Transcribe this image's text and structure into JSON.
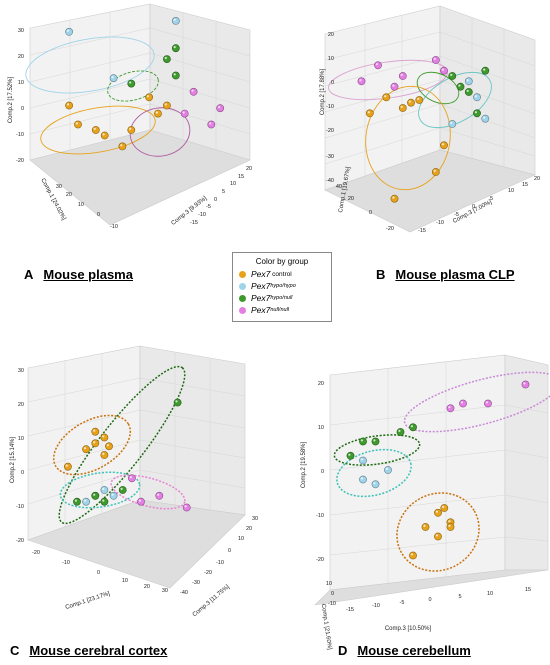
{
  "legend": {
    "title": "Color by group",
    "items": [
      {
        "gene": "Pex7",
        "suffix": " control",
        "sup": "",
        "color": "#e7a21a"
      },
      {
        "gene": "Pex7",
        "suffix": "",
        "sup": "hypo/hypo",
        "color": "#9ed3ea"
      },
      {
        "gene": "Pex7",
        "suffix": "",
        "sup": "hypo/null",
        "color": "#3e9a2c"
      },
      {
        "gene": "Pex7",
        "suffix": "",
        "sup": "null/null",
        "color": "#e37ee3"
      }
    ]
  },
  "chart_data": [
    {
      "type": "scatter",
      "letter": "A",
      "title": "Mouse plasma",
      "axes": {
        "z": {
          "label": "Comp.2 [17.52%]",
          "ticks": [
            "30",
            "20",
            "10",
            "0",
            "-10",
            "-20"
          ]
        },
        "x": {
          "label": "Comp.1 [24.02%]",
          "ticks": [
            "-10",
            "0",
            "10",
            "20",
            "30"
          ]
        },
        "y": {
          "label": "Comp.3 [9.93%]",
          "ticks": [
            "-15",
            "-10",
            "-5",
            "0",
            "5",
            "10",
            "15",
            "20"
          ]
        }
      },
      "groups": [
        {
          "group": "control",
          "points": [
            [
              -18,
              -5
            ],
            [
              -16,
              -12
            ],
            [
              -12,
              -14
            ],
            [
              -10,
              -16
            ],
            [
              -6,
              -20
            ],
            [
              -4,
              -14
            ],
            [
              2,
              -8
            ],
            [
              0,
              -2
            ],
            [
              4,
              -5
            ]
          ]
        },
        {
          "group": "hypo/hypo",
          "points": [
            [
              -18,
              22
            ],
            [
              -8,
              5
            ],
            [
              6,
              26
            ]
          ]
        },
        {
          "group": "hypo/null",
          "points": [
            [
              4,
              12
            ],
            [
              6,
              16
            ],
            [
              6,
              6
            ],
            [
              -4,
              3
            ]
          ]
        },
        {
          "group": "null/null",
          "points": [
            [
              10,
              0
            ],
            [
              8,
              -8
            ],
            [
              14,
              -12
            ],
            [
              16,
              -6
            ]
          ]
        }
      ]
    },
    {
      "type": "scatter",
      "letter": "B",
      "title": "Mouse plasma CLP",
      "axes": {
        "z": {
          "label": "Comp.2 [17.88%]",
          "ticks": [
            "20",
            "10",
            "0",
            "-10",
            "-20",
            "-30",
            "-40"
          ]
        },
        "x": {
          "label": "Comp.1 [19.67%]",
          "ticks": [
            "-20",
            "0",
            "20",
            "40"
          ]
        },
        "y": {
          "label": "Comp.3 [7.00%]",
          "ticks": [
            "-15",
            "-10",
            "-5",
            "0",
            "5",
            "10",
            "15",
            "20"
          ]
        }
      },
      "groups": [
        {
          "group": "control",
          "points": [
            [
              -14,
              -8
            ],
            [
              -10,
              -2
            ],
            [
              -6,
              -6
            ],
            [
              -4,
              -4
            ],
            [
              -2,
              -3
            ],
            [
              2,
              -30
            ],
            [
              4,
              -20
            ],
            [
              -8,
              -40
            ]
          ]
        },
        {
          "group": "hypo/hypo",
          "points": [
            [
              6,
              -12
            ],
            [
              12,
              -2
            ],
            [
              14,
              -10
            ],
            [
              10,
              4
            ]
          ]
        },
        {
          "group": "hypo/null",
          "points": [
            [
              6,
              6
            ],
            [
              10,
              0
            ],
            [
              12,
              -8
            ],
            [
              14,
              8
            ],
            [
              8,
              2
            ]
          ]
        },
        {
          "group": "null/null",
          "points": [
            [
              -16,
              4
            ],
            [
              -12,
              10
            ],
            [
              -8,
              2
            ],
            [
              -6,
              6
            ],
            [
              2,
              12
            ],
            [
              4,
              8
            ]
          ]
        }
      ]
    },
    {
      "type": "scatter",
      "letter": "C",
      "title": "Mouse cerebral cortex",
      "axes": {
        "z": {
          "label": "Comp.2 [15.14%]",
          "ticks": [
            "30",
            "20",
            "10",
            "0",
            "-10",
            "-20"
          ]
        },
        "x": {
          "label": "Comp.1 [23.17%]",
          "ticks": [
            "-20",
            "-10",
            "0",
            "10",
            "20",
            "30"
          ]
        },
        "y": {
          "label": "Comp.3 [11.75%]",
          "ticks": [
            "-40",
            "-30",
            "-20",
            "-10",
            "0",
            "10",
            "20",
            "30"
          ]
        }
      },
      "groups": [
        {
          "group": "control",
          "points": [
            [
              -4,
              8
            ],
            [
              -2,
              10
            ],
            [
              -2,
              4
            ],
            [
              -6,
              6
            ],
            [
              -10,
              0
            ],
            [
              -4,
              12
            ],
            [
              -1,
              7
            ]
          ]
        },
        {
          "group": "hypo/hypo",
          "points": [
            [
              -6,
              -12
            ],
            [
              -2,
              -8
            ],
            [
              0,
              -10
            ],
            [
              -4,
              -10
            ]
          ]
        },
        {
          "group": "hypo/null",
          "points": [
            [
              -8,
              -12
            ],
            [
              2,
              -8
            ],
            [
              -4,
              -10
            ],
            [
              -2,
              -12
            ],
            [
              14,
              22
            ]
          ]
        },
        {
          "group": "null/null",
          "points": [
            [
              4,
              -4
            ],
            [
              6,
              -12
            ],
            [
              10,
              -10
            ],
            [
              16,
              -14
            ]
          ]
        }
      ]
    },
    {
      "type": "scatter",
      "letter": "D",
      "title": "Mouse cerebellum",
      "axes": {
        "z": {
          "label": "Comp.2 [19.58%]",
          "ticks": [
            "20",
            "10",
            "0",
            "-10",
            "-20"
          ]
        },
        "x": {
          "label": "Comp.1 [21.60%]",
          "ticks": [
            "-10",
            "0",
            "10"
          ]
        },
        "y": {
          "label": "Comp.3 [10.50%]",
          "ticks": [
            "-15",
            "-10",
            "-5",
            "0",
            "5",
            "10",
            "15"
          ]
        }
      },
      "groups": [
        {
          "group": "control",
          "points": [
            [
              -2,
              -12
            ],
            [
              0,
              -9
            ],
            [
              2,
              -11
            ],
            [
              -4,
              -18
            ],
            [
              0,
              -14
            ],
            [
              2,
              -12
            ],
            [
              1,
              -8
            ]
          ]
        },
        {
          "group": "hypo/hypo",
          "points": [
            [
              -12,
              2
            ],
            [
              -8,
              0
            ],
            [
              -10,
              -3
            ],
            [
              -12,
              -2
            ]
          ]
        },
        {
          "group": "hypo/null",
          "points": [
            [
              -14,
              3
            ],
            [
              -10,
              6
            ],
            [
              -6,
              8
            ],
            [
              -4,
              9
            ],
            [
              -12,
              6
            ]
          ]
        },
        {
          "group": "null/null",
          "points": [
            [
              2,
              13
            ],
            [
              4,
              14
            ],
            [
              8,
              14
            ],
            [
              14,
              18
            ]
          ]
        }
      ]
    }
  ]
}
